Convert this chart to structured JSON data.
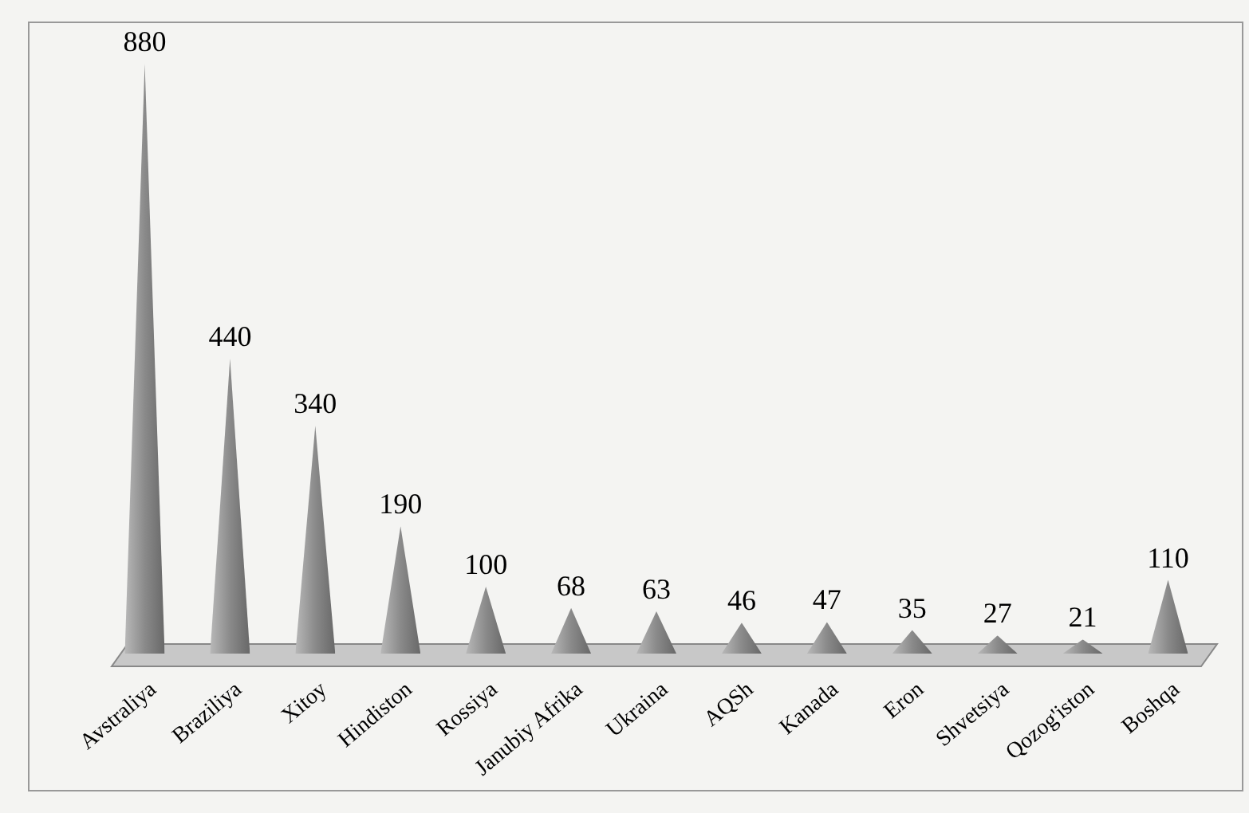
{
  "chart_data": {
    "type": "bar",
    "categories": [
      "Avstraliya",
      "Braziliya",
      "Xitoy",
      "Hindiston",
      "Rossiya",
      "Janubiy Afrika",
      "Ukraina",
      "AQSh",
      "Kanada",
      "Eron",
      "Shvetsiya",
      "Qozog'iston",
      "Boshqa"
    ],
    "values": [
      880,
      440,
      340,
      190,
      100,
      68,
      63,
      46,
      47,
      35,
      27,
      21,
      110
    ],
    "color": "#8a8a8a",
    "data_labels": true
  }
}
